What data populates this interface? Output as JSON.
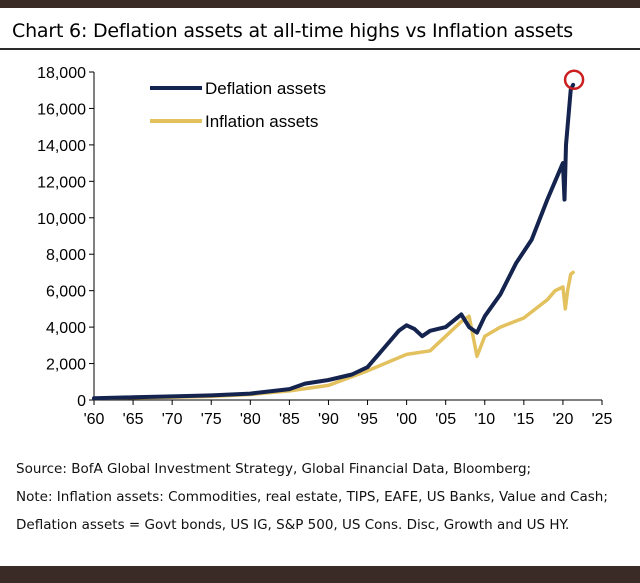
{
  "title": "Chart 6: Deflation assets at all-time highs vs Inflation assets",
  "source": "Source: BofA Global Investment Strategy, Global Financial Data, Bloomberg;",
  "note": "Note: Inflation assets: Commodities, real estate, TIPS, EAFE, US Banks, Value and Cash; Deflation assets = Govt bonds, US IG, S&P 500, US Cons. Disc, Growth and US HY.",
  "colors": {
    "deflation": "#14244f",
    "inflation": "#e3c15f",
    "highlight": "#cc1f1f"
  },
  "chart_data": {
    "type": "line",
    "title": "Chart 6: Deflation assets at all-time highs vs Inflation assets",
    "xlabel": "",
    "ylabel": "",
    "xlim": [
      1960,
      2025
    ],
    "ylim": [
      0,
      18000
    ],
    "grid": false,
    "legend_position": "top-left",
    "x_ticks": [
      1960,
      1965,
      1970,
      1975,
      1980,
      1985,
      1990,
      1995,
      2000,
      2005,
      2010,
      2015,
      2020,
      2025
    ],
    "x_tick_labels": [
      "'60",
      "'65",
      "'70",
      "'75",
      "'80",
      "'85",
      "'90",
      "'95",
      "'00",
      "'05",
      "'10",
      "'15",
      "'20",
      "'25"
    ],
    "y_ticks": [
      0,
      2000,
      4000,
      6000,
      8000,
      10000,
      12000,
      14000,
      16000,
      18000
    ],
    "y_tick_labels": [
      "0",
      "2,000",
      "4,000",
      "6,000",
      "8,000",
      "10,000",
      "12,000",
      "14,000",
      "16,000",
      "18,000"
    ],
    "series": [
      {
        "name": "Deflation assets",
        "x": [
          1960,
          1965,
          1970,
          1975,
          1980,
          1985,
          1987,
          1990,
          1993,
          1995,
          1997,
          1999,
          2000,
          2001,
          2002,
          2003,
          2005,
          2007,
          2008,
          2009,
          2010,
          2012,
          2014,
          2016,
          2018,
          2019,
          2020,
          2020.2,
          2020.4,
          2021,
          2021.3
        ],
        "values": [
          100,
          150,
          200,
          250,
          350,
          600,
          900,
          1100,
          1400,
          1800,
          2800,
          3800,
          4100,
          3900,
          3500,
          3800,
          4000,
          4700,
          4000,
          3700,
          4600,
          5800,
          7500,
          8800,
          11000,
          12000,
          13000,
          11000,
          14000,
          17000,
          17300
        ]
      },
      {
        "name": "Inflation assets",
        "x": [
          1960,
          1965,
          1970,
          1975,
          1980,
          1985,
          1990,
          1995,
          2000,
          2003,
          2005,
          2007,
          2008,
          2009,
          2010,
          2012,
          2015,
          2018,
          2019,
          2020,
          2020.3,
          2020.6,
          2021,
          2021.3
        ],
        "values": [
          100,
          120,
          150,
          200,
          300,
          500,
          800,
          1600,
          2500,
          2700,
          3500,
          4300,
          4600,
          2400,
          3500,
          4000,
          4500,
          5500,
          6000,
          6200,
          5000,
          6000,
          6900,
          7000
        ]
      }
    ],
    "annotations": [
      "red circle marking latest Deflation assets high"
    ]
  }
}
